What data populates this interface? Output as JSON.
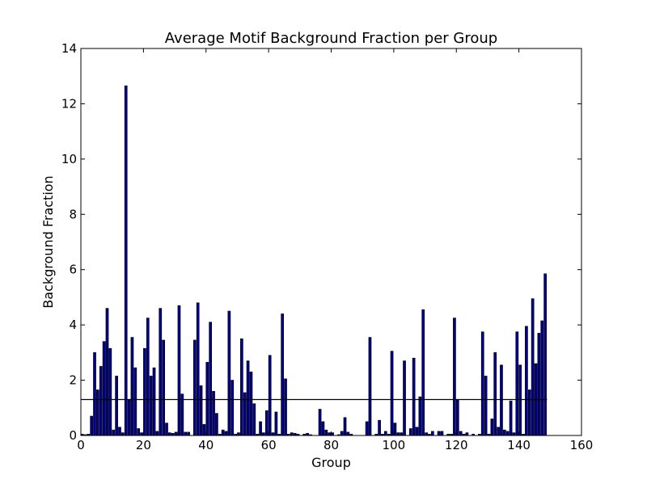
{
  "chart_data": {
    "type": "bar",
    "title": "Average Motif Background Fraction per Group",
    "xlabel": "Group",
    "ylabel": "Background Fraction",
    "xlim": [
      0,
      160
    ],
    "ylim": [
      0,
      14
    ],
    "xticks": [
      0,
      20,
      40,
      60,
      80,
      100,
      120,
      140,
      160
    ],
    "yticks": [
      0,
      2,
      4,
      6,
      8,
      10,
      12,
      14
    ],
    "bar_color": "#00008b",
    "edge_color": "#000000",
    "reference_line": {
      "y": 1.3,
      "x_range": [
        0,
        149
      ]
    },
    "grid": false,
    "x": [
      0,
      1,
      2,
      3,
      4,
      5,
      6,
      7,
      8,
      9,
      10,
      11,
      12,
      13,
      14,
      15,
      16,
      17,
      18,
      19,
      20,
      21,
      22,
      23,
      24,
      25,
      26,
      27,
      28,
      29,
      30,
      31,
      32,
      33,
      34,
      35,
      36,
      37,
      38,
      39,
      40,
      41,
      42,
      43,
      44,
      45,
      46,
      47,
      48,
      49,
      50,
      51,
      52,
      53,
      54,
      55,
      56,
      57,
      58,
      59,
      60,
      61,
      62,
      63,
      64,
      65,
      66,
      67,
      68,
      69,
      70,
      71,
      72,
      73,
      74,
      75,
      76,
      77,
      78,
      79,
      80,
      81,
      82,
      83,
      84,
      85,
      86,
      87,
      88,
      89,
      90,
      91,
      92,
      93,
      94,
      95,
      96,
      97,
      98,
      99,
      100,
      101,
      102,
      103,
      104,
      105,
      106,
      107,
      108,
      109,
      110,
      111,
      112,
      113,
      114,
      115,
      116,
      117,
      118,
      119,
      120,
      121,
      122,
      123,
      124,
      125,
      126,
      127,
      128,
      129,
      130,
      131,
      132,
      133,
      134,
      135,
      136,
      137,
      138,
      139,
      140,
      141,
      142,
      143,
      144,
      145,
      146,
      147,
      148
    ],
    "values": [
      0.05,
      0.03,
      0.05,
      0.7,
      3.0,
      1.65,
      2.5,
      3.4,
      4.6,
      3.15,
      0.2,
      2.15,
      0.3,
      0.1,
      12.65,
      1.3,
      3.55,
      2.45,
      0.25,
      0.1,
      3.15,
      4.25,
      2.15,
      2.45,
      0.15,
      4.6,
      3.45,
      0.45,
      0.1,
      0.08,
      0.12,
      4.7,
      1.5,
      0.12,
      0.12,
      0.0,
      3.45,
      4.8,
      1.8,
      0.4,
      2.65,
      4.1,
      1.6,
      0.8,
      0.05,
      0.2,
      0.15,
      4.5,
      2.0,
      0.05,
      0.1,
      3.5,
      1.55,
      2.7,
      2.3,
      1.15,
      0.05,
      0.5,
      0.1,
      0.9,
      2.9,
      0.1,
      0.85,
      0.05,
      4.4,
      2.05,
      0.05,
      0.1,
      0.08,
      0.05,
      0.0,
      0.05,
      0.08,
      0.03,
      0.0,
      0.0,
      0.95,
      0.5,
      0.2,
      0.1,
      0.1,
      0.0,
      0.03,
      0.15,
      0.65,
      0.12,
      0.05,
      0.0,
      0.0,
      0.0,
      0.0,
      0.5,
      3.55,
      0.0,
      0.05,
      0.55,
      0.05,
      0.15,
      0.05,
      3.05,
      0.45,
      0.1,
      0.1,
      2.7,
      0.0,
      0.25,
      2.8,
      0.3,
      1.4,
      4.55,
      0.1,
      0.05,
      0.15,
      0.0,
      0.15,
      0.15,
      0.0,
      0.05,
      0.05,
      4.25,
      1.3,
      0.15,
      0.05,
      0.1,
      0.0,
      0.05,
      0.0,
      0.05,
      3.75,
      2.15,
      0.05,
      0.6,
      3.0,
      0.3,
      2.55,
      0.2,
      0.15,
      1.25,
      0.1,
      3.75,
      2.55,
      0.05,
      3.95,
      1.65,
      4.95,
      2.6,
      3.7,
      4.15,
      5.85
    ]
  }
}
